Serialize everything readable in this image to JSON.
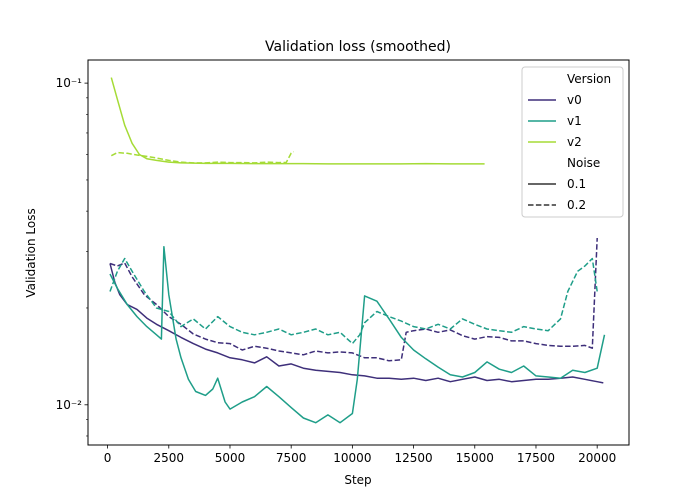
{
  "chart_data": {
    "type": "line",
    "title": "Validation loss (smoothed)",
    "xlabel": "Step",
    "ylabel": "Validation Loss",
    "yscale": "log",
    "xlim": [
      -800,
      21300
    ],
    "ylim": [
      0.0075,
      0.118
    ],
    "x_ticks": [
      0,
      2500,
      5000,
      7500,
      10000,
      12500,
      15000,
      17500,
      20000
    ],
    "x_tick_labels": [
      "0",
      "2500",
      "5000",
      "7500",
      "10000",
      "12500",
      "15000",
      "17500",
      "20000"
    ],
    "y_ticks": [
      0.01,
      0.1
    ],
    "y_tick_labels": [
      "10⁻²",
      "10⁻¹"
    ],
    "grid": false,
    "legend": {
      "placement": "top-right",
      "hue_title": "Version",
      "style_title": "Noise",
      "hue_entries": [
        {
          "label": "v0",
          "color": "#3e2f7a"
        },
        {
          "label": "v1",
          "color": "#1f9e89"
        },
        {
          "label": "v2",
          "color": "#a5db36"
        }
      ],
      "style_entries": [
        {
          "label": "0.1",
          "dash": "solid"
        },
        {
          "label": "0.2",
          "dash": "dashed"
        }
      ]
    },
    "series": [
      {
        "version": "v0",
        "noise": "0.1",
        "color": "#3e2f7a",
        "dash": "solid",
        "points": [
          [
            100,
            0.0275
          ],
          [
            300,
            0.024
          ],
          [
            500,
            0.022
          ],
          [
            800,
            0.0205
          ],
          [
            1200,
            0.0198
          ],
          [
            1600,
            0.0186
          ],
          [
            2000,
            0.0178
          ],
          [
            2500,
            0.017
          ],
          [
            3000,
            0.0162
          ],
          [
            3500,
            0.0155
          ],
          [
            4000,
            0.0149
          ],
          [
            4500,
            0.0145
          ],
          [
            5000,
            0.014
          ],
          [
            5500,
            0.0138
          ],
          [
            6000,
            0.0135
          ],
          [
            6500,
            0.0141
          ],
          [
            7000,
            0.0132
          ],
          [
            7500,
            0.0134
          ],
          [
            8000,
            0.013
          ],
          [
            8500,
            0.0128
          ],
          [
            9000,
            0.0127
          ],
          [
            9500,
            0.0126
          ],
          [
            10000,
            0.0124
          ],
          [
            10500,
            0.0123
          ],
          [
            11000,
            0.0121
          ],
          [
            11500,
            0.0121
          ],
          [
            12000,
            0.012
          ],
          [
            12500,
            0.0121
          ],
          [
            13000,
            0.0119
          ],
          [
            13500,
            0.0121
          ],
          [
            14000,
            0.0118
          ],
          [
            14500,
            0.012
          ],
          [
            15000,
            0.0122
          ],
          [
            15500,
            0.0119
          ],
          [
            16000,
            0.012
          ],
          [
            16500,
            0.0118
          ],
          [
            17000,
            0.0119
          ],
          [
            17500,
            0.012
          ],
          [
            18000,
            0.012
          ],
          [
            18500,
            0.0121
          ],
          [
            19000,
            0.0122
          ],
          [
            19500,
            0.012
          ],
          [
            20000,
            0.0118
          ],
          [
            20250,
            0.0117
          ]
        ]
      },
      {
        "version": "v0",
        "noise": "0.2",
        "color": "#3e2f7a",
        "dash": "dashed",
        "points": [
          [
            100,
            0.0275
          ],
          [
            400,
            0.027
          ],
          [
            700,
            0.0276
          ],
          [
            1000,
            0.025
          ],
          [
            1500,
            0.022
          ],
          [
            2000,
            0.0205
          ],
          [
            2500,
            0.0188
          ],
          [
            3000,
            0.0178
          ],
          [
            3500,
            0.0166
          ],
          [
            4000,
            0.016
          ],
          [
            4500,
            0.0156
          ],
          [
            5000,
            0.0155
          ],
          [
            5500,
            0.0148
          ],
          [
            6000,
            0.0152
          ],
          [
            6500,
            0.015
          ],
          [
            7000,
            0.0147
          ],
          [
            7500,
            0.0145
          ],
          [
            8000,
            0.0143
          ],
          [
            8500,
            0.0147
          ],
          [
            9000,
            0.0145
          ],
          [
            9500,
            0.0146
          ],
          [
            10000,
            0.0145
          ],
          [
            10500,
            0.014
          ],
          [
            11000,
            0.014
          ],
          [
            11500,
            0.0137
          ],
          [
            12000,
            0.0138
          ],
          [
            12200,
            0.0168
          ],
          [
            12500,
            0.017
          ],
          [
            13000,
            0.0172
          ],
          [
            13500,
            0.0168
          ],
          [
            14000,
            0.0171
          ],
          [
            14500,
            0.0164
          ],
          [
            15000,
            0.016
          ],
          [
            15500,
            0.0163
          ],
          [
            16000,
            0.0162
          ],
          [
            16500,
            0.0158
          ],
          [
            17000,
            0.0158
          ],
          [
            17500,
            0.0155
          ],
          [
            18000,
            0.0153
          ],
          [
            18500,
            0.0152
          ],
          [
            19000,
            0.0152
          ],
          [
            19500,
            0.0153
          ],
          [
            19800,
            0.015
          ],
          [
            20000,
            0.033
          ]
        ]
      },
      {
        "version": "v1",
        "noise": "0.1",
        "color": "#1f9e89",
        "dash": "solid",
        "points": [
          [
            100,
            0.0255
          ],
          [
            400,
            0.023
          ],
          [
            800,
            0.0205
          ],
          [
            1200,
            0.0188
          ],
          [
            1600,
            0.0175
          ],
          [
            2000,
            0.0165
          ],
          [
            2200,
            0.016
          ],
          [
            2300,
            0.031
          ],
          [
            2500,
            0.022
          ],
          [
            2800,
            0.016
          ],
          [
            3000,
            0.014
          ],
          [
            3300,
            0.012
          ],
          [
            3600,
            0.011
          ],
          [
            4000,
            0.0107
          ],
          [
            4300,
            0.0112
          ],
          [
            4500,
            0.0121
          ],
          [
            4800,
            0.0102
          ],
          [
            5000,
            0.0097
          ],
          [
            5500,
            0.0102
          ],
          [
            6000,
            0.0106
          ],
          [
            6500,
            0.0114
          ],
          [
            7000,
            0.0106
          ],
          [
            7500,
            0.0098
          ],
          [
            8000,
            0.0091
          ],
          [
            8500,
            0.0088
          ],
          [
            9000,
            0.0093
          ],
          [
            9500,
            0.0088
          ],
          [
            10000,
            0.0094
          ],
          [
            10200,
            0.012
          ],
          [
            10500,
            0.0218
          ],
          [
            11000,
            0.021
          ],
          [
            11500,
            0.0185
          ],
          [
            12000,
            0.0162
          ],
          [
            12500,
            0.0148
          ],
          [
            13000,
            0.0139
          ],
          [
            13500,
            0.0131
          ],
          [
            14000,
            0.0124
          ],
          [
            14500,
            0.0122
          ],
          [
            15000,
            0.0126
          ],
          [
            15500,
            0.0136
          ],
          [
            16000,
            0.0129
          ],
          [
            16500,
            0.0126
          ],
          [
            17000,
            0.0132
          ],
          [
            17500,
            0.0123
          ],
          [
            18000,
            0.0122
          ],
          [
            18500,
            0.0121
          ],
          [
            19000,
            0.0128
          ],
          [
            19500,
            0.0126
          ],
          [
            20000,
            0.013
          ],
          [
            20300,
            0.0165
          ]
        ]
      },
      {
        "version": "v1",
        "noise": "0.2",
        "color": "#1f9e89",
        "dash": "dashed",
        "points": [
          [
            100,
            0.0225
          ],
          [
            400,
            0.026
          ],
          [
            700,
            0.0285
          ],
          [
            1000,
            0.026
          ],
          [
            1500,
            0.0225
          ],
          [
            2000,
            0.02
          ],
          [
            2500,
            0.0195
          ],
          [
            3000,
            0.0175
          ],
          [
            3500,
            0.0185
          ],
          [
            4000,
            0.0172
          ],
          [
            4500,
            0.0188
          ],
          [
            5000,
            0.0175
          ],
          [
            5500,
            0.0168
          ],
          [
            6000,
            0.0165
          ],
          [
            6500,
            0.0168
          ],
          [
            7000,
            0.0172
          ],
          [
            7500,
            0.0165
          ],
          [
            8000,
            0.0168
          ],
          [
            8500,
            0.0172
          ],
          [
            9000,
            0.0165
          ],
          [
            9500,
            0.0168
          ],
          [
            10000,
            0.0155
          ],
          [
            10300,
            0.0165
          ],
          [
            10500,
            0.018
          ],
          [
            11000,
            0.0195
          ],
          [
            11500,
            0.0188
          ],
          [
            12000,
            0.0182
          ],
          [
            12500,
            0.0175
          ],
          [
            13000,
            0.0172
          ],
          [
            13500,
            0.0178
          ],
          [
            14000,
            0.0172
          ],
          [
            14500,
            0.0185
          ],
          [
            15000,
            0.0178
          ],
          [
            15500,
            0.0172
          ],
          [
            16000,
            0.017
          ],
          [
            16500,
            0.0168
          ],
          [
            17000,
            0.0175
          ],
          [
            17500,
            0.0172
          ],
          [
            18000,
            0.017
          ],
          [
            18500,
            0.0185
          ],
          [
            18800,
            0.0225
          ],
          [
            19200,
            0.026
          ],
          [
            19500,
            0.027
          ],
          [
            19800,
            0.0285
          ],
          [
            20000,
            0.0225
          ]
        ]
      },
      {
        "version": "v2",
        "noise": "0.1",
        "color": "#a5db36",
        "dash": "solid",
        "points": [
          [
            150,
            0.104
          ],
          [
            400,
            0.089
          ],
          [
            700,
            0.074
          ],
          [
            1000,
            0.065
          ],
          [
            1300,
            0.06
          ],
          [
            1600,
            0.0582
          ],
          [
            2000,
            0.0575
          ],
          [
            2500,
            0.0568
          ],
          [
            3000,
            0.0565
          ],
          [
            4000,
            0.0563
          ],
          [
            5000,
            0.0563
          ],
          [
            6000,
            0.0562
          ],
          [
            7000,
            0.0562
          ],
          [
            8000,
            0.0562
          ],
          [
            9000,
            0.0561
          ],
          [
            10000,
            0.0561
          ],
          [
            11000,
            0.0561
          ],
          [
            12000,
            0.0561
          ],
          [
            13000,
            0.0562
          ],
          [
            14000,
            0.0561
          ],
          [
            15000,
            0.0561
          ],
          [
            15400,
            0.0561
          ]
        ]
      },
      {
        "version": "v2",
        "noise": "0.2",
        "color": "#a5db36",
        "dash": "dashed",
        "points": [
          [
            150,
            0.0595
          ],
          [
            400,
            0.0608
          ],
          [
            800,
            0.0605
          ],
          [
            1200,
            0.0598
          ],
          [
            1600,
            0.0592
          ],
          [
            2000,
            0.0585
          ],
          [
            2500,
            0.0575
          ],
          [
            3000,
            0.0568
          ],
          [
            3500,
            0.0565
          ],
          [
            4000,
            0.0565
          ],
          [
            4500,
            0.0568
          ],
          [
            5000,
            0.0566
          ],
          [
            5500,
            0.0566
          ],
          [
            6000,
            0.0565
          ],
          [
            6500,
            0.0568
          ],
          [
            7000,
            0.0566
          ],
          [
            7300,
            0.0567
          ],
          [
            7500,
            0.0606
          ],
          [
            7600,
            0.0612
          ]
        ]
      }
    ]
  }
}
